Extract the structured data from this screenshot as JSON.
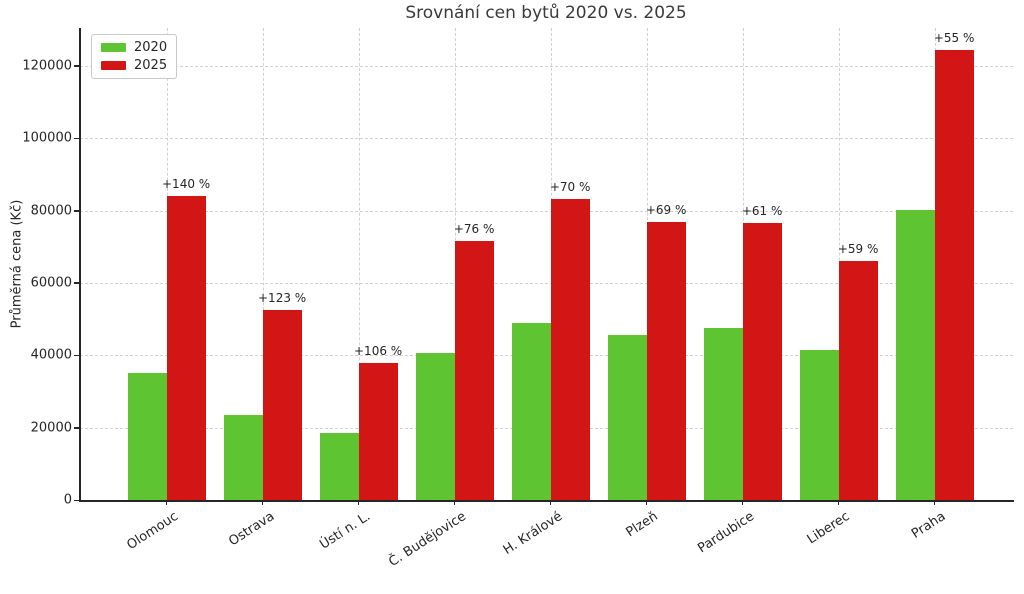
{
  "title": "Srovnání cen bytů 2020 vs. 2025",
  "ylabel": "Průměrná cena (Kč)",
  "legend": {
    "items": [
      {
        "label": "2020",
        "color": "#5ec431"
      },
      {
        "label": "2025",
        "color": "#d21616"
      }
    ]
  },
  "chart_data": {
    "type": "bar",
    "title": "Srovnání cen bytů 2020 vs. 2025",
    "xlabel": "",
    "ylabel": "Průměrná cena (Kč)",
    "categories": [
      "Olomouc",
      "Ostrava",
      "Ústí n. L.",
      "Č. Budějovice",
      "H. Králové",
      "Plzeň",
      "Pardubice",
      "Liberec",
      "Praha"
    ],
    "series": [
      {
        "name": "2020",
        "color": "#5ec431",
        "values": [
          35000,
          23500,
          18400,
          40700,
          48900,
          45500,
          47600,
          41500,
          80300
        ]
      },
      {
        "name": "2025",
        "color": "#d21616",
        "values": [
          84000,
          52400,
          37900,
          71600,
          83100,
          76900,
          76600,
          66000,
          124500
        ]
      }
    ],
    "annotations": [
      "+140 %",
      "+123 %",
      "+106 %",
      "+76 %",
      "+70 %",
      "+69 %",
      "+61 %",
      "+59 %",
      "+55 %"
    ],
    "yticks": [
      0,
      20000,
      40000,
      60000,
      80000,
      100000,
      120000
    ],
    "ylim": [
      0,
      130500
    ],
    "grid": true,
    "grid_style": "dashed",
    "legend_position": "upper left",
    "bar_colors": {
      "2020": "#5ec431",
      "2025": "#d21616"
    }
  }
}
